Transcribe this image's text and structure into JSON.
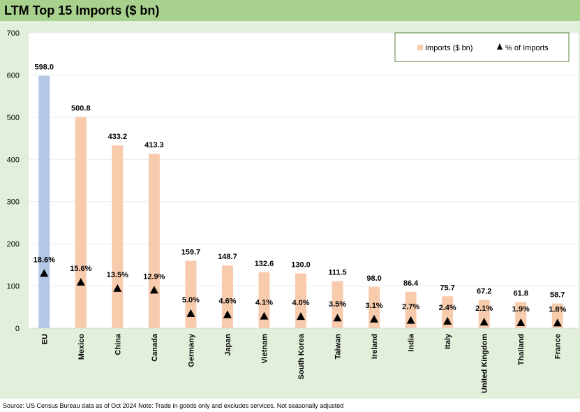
{
  "title": "LTM Top 15 Imports ($ bn)",
  "source": "Source: US Census Bureau data as of Oct 2024 Note: Trade in goods only and excludes services. Not seasonally adjusted",
  "colors": {
    "title_bg": "#a9d18e",
    "panel_bg": "#e2efda",
    "bar": "#f8cbad",
    "bar_highlight": "#b4c7e7",
    "marker": "#000000",
    "legend_border": "#548235"
  },
  "chart_data": {
    "type": "bar",
    "categories": [
      "EU",
      "Mexico",
      "China",
      "Canada",
      "Germany",
      "Japan",
      "Vietnam",
      "South Korea",
      "Taiwan",
      "Ireland",
      "India",
      "Italy",
      "United Kingdom",
      "Thailand",
      "France"
    ],
    "series": [
      {
        "name": "Imports ($ bn)",
        "type": "bar",
        "values": [
          598.0,
          500.8,
          433.2,
          413.3,
          159.7,
          148.7,
          132.6,
          130.0,
          111.5,
          98.0,
          86.4,
          75.7,
          67.2,
          61.8,
          58.7
        ],
        "labels": [
          "598.0",
          "500.8",
          "433.2",
          "413.3",
          "159.7",
          "148.7",
          "132.6",
          "130.0",
          "111.5",
          "98.0",
          "86.4",
          "75.7",
          "67.2",
          "61.8",
          "58.7"
        ]
      },
      {
        "name": "% of Imports",
        "type": "marker-triangle",
        "values": [
          18.6,
          15.6,
          13.5,
          12.9,
          5.0,
          4.6,
          4.1,
          4.0,
          3.5,
          3.1,
          2.7,
          2.4,
          2.1,
          1.9,
          1.8
        ],
        "labels": [
          "18.6%",
          "15.6%",
          "13.5%",
          "12.9%",
          "5.0%",
          "4.6%",
          "4.1%",
          "4.0%",
          "3.5%",
          "3.1%",
          "2.7%",
          "2.4%",
          "2.1%",
          "1.9%",
          "1.8%"
        ]
      }
    ],
    "highlight_category": "EU",
    "ylim": [
      0,
      700
    ],
    "yticks": [
      0,
      100,
      200,
      300,
      400,
      500,
      600,
      700
    ],
    "grid": true,
    "legend_position": "top-right"
  }
}
